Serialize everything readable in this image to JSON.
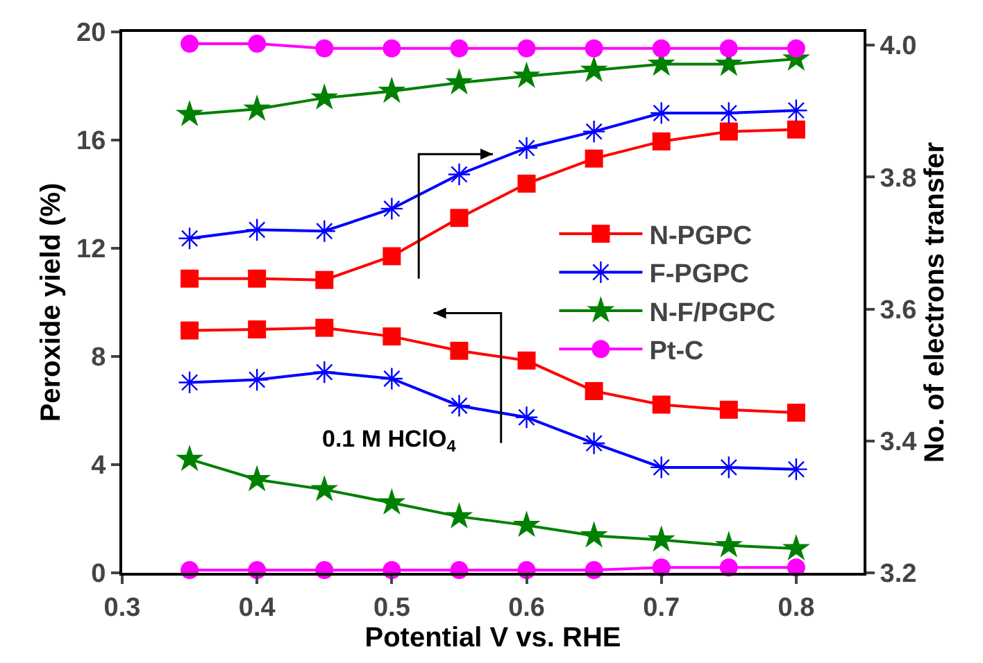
{
  "chart_data": {
    "type": "line",
    "xlabel": "Potential V vs. RHE",
    "ylabel": "Peroxide yield (%)",
    "y2label": "No. of electrons transfer",
    "x": [
      0.35,
      0.4,
      0.45,
      0.5,
      0.55,
      0.6,
      0.65,
      0.7,
      0.75,
      0.8
    ],
    "series": [
      {
        "name": "N-PGPC",
        "color": "#ff0000",
        "marker": "square",
        "values": [
          8.96,
          9.0,
          9.06,
          8.74,
          8.21,
          7.85,
          6.72,
          6.22,
          6.03,
          5.92
        ]
      },
      {
        "name": "F-PGPC",
        "color": "#0000ff",
        "marker": "cross",
        "values": [
          7.04,
          7.14,
          7.42,
          7.18,
          6.18,
          5.75,
          4.79,
          3.9,
          3.9,
          3.83
        ]
      },
      {
        "name": "N-F/PGPC",
        "color": "#008000",
        "marker": "star",
        "values": [
          4.2,
          3.45,
          3.08,
          2.59,
          2.08,
          1.76,
          1.37,
          1.22,
          1.01,
          0.9
        ]
      },
      {
        "name": "Pt-C",
        "color": "#ff00ff",
        "marker": "circle",
        "values": [
          0.1,
          0.1,
          0.1,
          0.1,
          0.1,
          0.1,
          0.1,
          0.2,
          0.2,
          0.2
        ]
      },
      {
        "color": "#ff0000",
        "marker": "square",
        "axis": "y2",
        "values": [
          3.646,
          3.646,
          3.644,
          3.68,
          3.738,
          3.79,
          3.828,
          3.854,
          3.869,
          3.872
        ]
      },
      {
        "color": "#0000ff",
        "marker": "cross",
        "axis": "y2",
        "values": [
          3.707,
          3.72,
          3.718,
          3.752,
          3.804,
          3.844,
          3.869,
          3.897,
          3.897,
          3.901
        ]
      },
      {
        "color": "#008000",
        "marker": "star",
        "axis": "y2",
        "values": [
          3.895,
          3.903,
          3.92,
          3.93,
          3.943,
          3.953,
          3.962,
          3.971,
          3.971,
          3.979
        ]
      },
      {
        "color": "#ff00ff",
        "marker": "circle",
        "axis": "y2",
        "values": [
          4.002,
          4.002,
          3.995,
          3.995,
          3.995,
          3.995,
          3.995,
          3.995,
          3.995,
          3.995
        ]
      }
    ],
    "xlim": [
      0.3,
      0.85
    ],
    "xticks": [
      0.3,
      0.4,
      0.5,
      0.6,
      0.7,
      0.8
    ],
    "ylim": [
      0,
      20
    ],
    "yticks": [
      0,
      4,
      8,
      12,
      16,
      20
    ],
    "y2lim": [
      3.2,
      4.02
    ],
    "y2ticks": [
      {
        "value": 3.2,
        "label": "3.2"
      },
      {
        "value": 3.4,
        "label": "3.4"
      },
      {
        "value": 3.6,
        "label": "3.6"
      },
      {
        "value": 3.8,
        "label": "3.8"
      },
      {
        "value": 4.0,
        "label": "4.0"
      }
    ],
    "annotations": [
      "0.1 M HClO$_{4}$"
    ],
    "legend": "right",
    "grid": false,
    "line_style": "solid"
  }
}
